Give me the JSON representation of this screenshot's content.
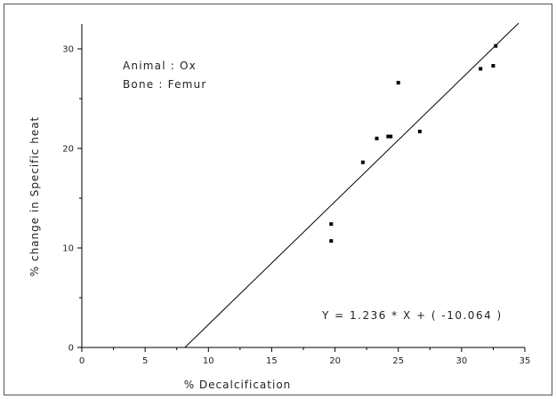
{
  "chart_data": {
    "type": "scatter",
    "title": "",
    "xlabel": "% Decalcification",
    "ylabel": "% change in Specific heat",
    "xlim": [
      0,
      35
    ],
    "ylim": [
      0,
      32.5
    ],
    "xticks": [
      0,
      5,
      10,
      15,
      20,
      25,
      30,
      35
    ],
    "yticks": [
      0,
      10,
      20,
      30
    ],
    "grid": false,
    "annotations": {
      "animal": "Animal : Ox",
      "bone": "Bone : Femur",
      "equation": "Y = 1.236 * X + ( -10.064 )"
    },
    "series": [
      {
        "points": [
          [
            19.7,
            12.4
          ],
          [
            19.7,
            10.7
          ],
          [
            22.2,
            18.6
          ],
          [
            23.3,
            21.0
          ],
          [
            24.2,
            21.2
          ],
          [
            24.4,
            21.2
          ],
          [
            25.0,
            26.6
          ],
          [
            26.7,
            21.7
          ],
          [
            31.5,
            28.0
          ],
          [
            32.5,
            28.3
          ],
          [
            32.7,
            30.3
          ]
        ]
      }
    ],
    "fit_line": {
      "slope": 1.236,
      "intercept": -10.064,
      "x_range": [
        8.14,
        34.5
      ]
    },
    "colors": {
      "axis": "#000000",
      "marker": "#000000",
      "line": "#000000"
    }
  }
}
